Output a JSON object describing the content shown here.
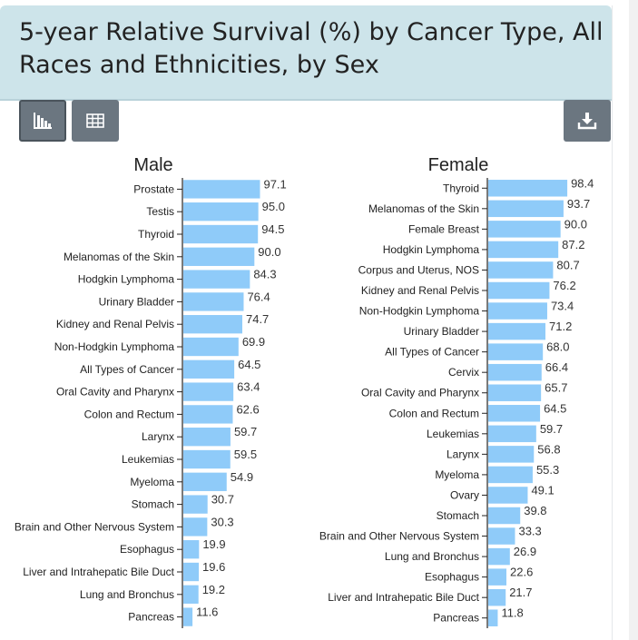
{
  "page": {
    "title": "5-year Relative Survival (%) by Cancer Type, All Races and Ethnicities, by Sex"
  },
  "toolbar": {
    "buttons": [
      {
        "icon": "bar-chart-icon"
      },
      {
        "icon": "table-icon"
      },
      {
        "icon": "download-icon"
      }
    ]
  },
  "colors": {
    "bar": "#8fcbf9",
    "header_bg": "#cde4ea",
    "button_bg": "#6b7680"
  },
  "chart_data": [
    {
      "type": "bar",
      "orientation": "horizontal",
      "title": "Male",
      "categories": [
        "Prostate",
        "Testis",
        "Thyroid",
        "Melanomas of the Skin",
        "Hodgkin Lymphoma",
        "Urinary Bladder",
        "Kidney and Renal Pelvis",
        "Non-Hodgkin Lymphoma",
        "All Types of Cancer",
        "Oral Cavity and Pharynx",
        "Colon and Rectum",
        "Larynx",
        "Leukemias",
        "Myeloma",
        "Stomach",
        "Brain and Other Nervous System",
        "Esophagus",
        "Liver and Intrahepatic Bile Duct",
        "Lung and Bronchus",
        "Pancreas"
      ],
      "values": [
        97.1,
        95.0,
        94.5,
        90.0,
        84.3,
        76.4,
        74.7,
        69.9,
        64.5,
        63.4,
        62.6,
        59.7,
        59.5,
        54.9,
        30.7,
        30.3,
        19.9,
        19.6,
        19.2,
        11.6
      ],
      "value_labels": [
        "97.1",
        "95.0",
        "94.5",
        "90.0",
        "84.3",
        "76.4",
        "74.7",
        "69.9",
        "64.5",
        "63.4",
        "62.6",
        "59.7",
        "59.5",
        "54.9",
        "30.7",
        "30.3",
        "19.9",
        "19.6",
        "19.2",
        "11.6"
      ],
      "xlim": [
        0,
        100
      ]
    },
    {
      "type": "bar",
      "orientation": "horizontal",
      "title": "Female",
      "categories": [
        "Thyroid",
        "Melanomas of the Skin",
        "Female Breast",
        "Hodgkin Lymphoma",
        "Corpus and Uterus, NOS",
        "Kidney and Renal Pelvis",
        "Non-Hodgkin Lymphoma",
        "Urinary Bladder",
        "All Types of Cancer",
        "Cervix",
        "Oral Cavity and Pharynx",
        "Colon and Rectum",
        "Leukemias",
        "Larynx",
        "Myeloma",
        "Ovary",
        "Stomach",
        "Brain and Other Nervous System",
        "Lung and Bronchus",
        "Esophagus",
        "Liver and Intrahepatic Bile Duct",
        "Pancreas"
      ],
      "values": [
        98.4,
        93.7,
        90.0,
        87.2,
        80.7,
        76.2,
        73.4,
        71.2,
        68.0,
        66.4,
        65.7,
        64.5,
        59.7,
        56.8,
        55.3,
        49.1,
        39.8,
        33.3,
        26.9,
        22.6,
        21.7,
        11.8
      ],
      "value_labels": [
        "98.4",
        "93.7",
        "90.0",
        "87.2",
        "80.7",
        "76.2",
        "73.4",
        "71.2",
        "68.0",
        "66.4",
        "65.7",
        "64.5",
        "59.7",
        "56.8",
        "55.3",
        "49.1",
        "39.8",
        "33.3",
        "26.9",
        "22.6",
        "21.7",
        "11.8"
      ],
      "xlim": [
        0,
        100
      ]
    }
  ]
}
